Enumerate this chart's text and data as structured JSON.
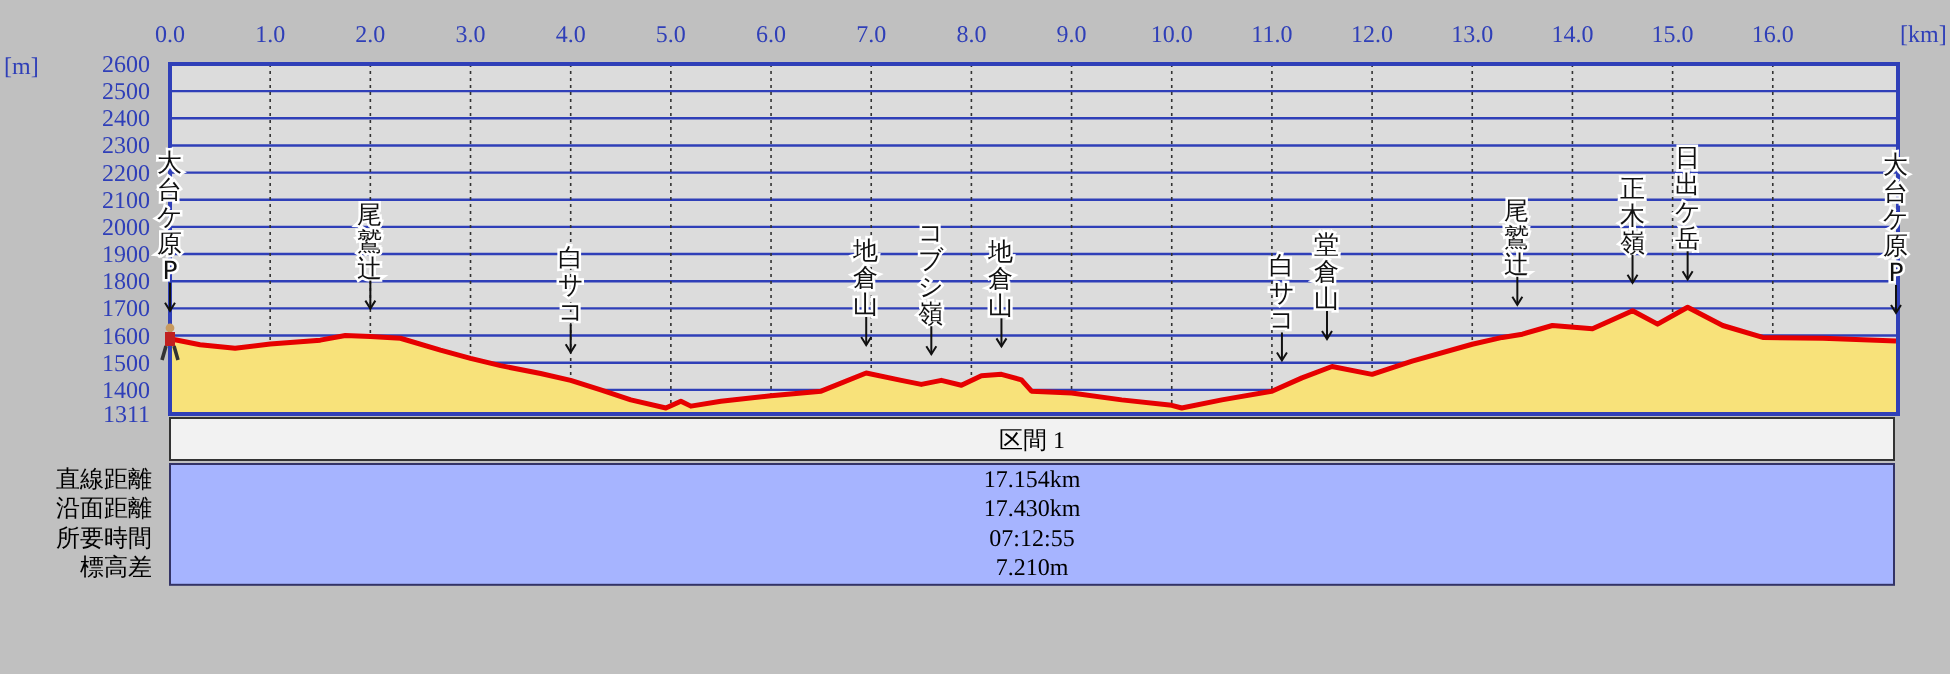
{
  "chart_data": {
    "type": "area",
    "xlabel": "[km]",
    "ylabel": "[m]",
    "x": [
      0,
      0.3,
      0.65,
      1.0,
      1.5,
      1.75,
      2.0,
      2.3,
      2.7,
      3.0,
      3.3,
      3.7,
      4.0,
      4.3,
      4.6,
      4.95,
      5.1,
      5.2,
      5.5,
      6.0,
      6.5,
      6.95,
      7.3,
      7.5,
      7.7,
      7.9,
      8.1,
      8.3,
      8.5,
      8.6,
      9.0,
      9.5,
      10.0,
      10.1,
      10.5,
      11.0,
      11.3,
      11.6,
      12.0,
      12.4,
      13.0,
      13.3,
      13.5,
      13.8,
      14.2,
      14.6,
      14.85,
      15.15,
      15.5,
      15.9,
      16.5,
      17.23
    ],
    "series": [
      {
        "color": "#f8e27a",
        "values": [
          1588,
          1566,
          1553,
          1569,
          1583,
          1600,
          1596,
          1590,
          1546,
          1516,
          1489,
          1460,
          1435,
          1400,
          1363,
          1333,
          1358,
          1340,
          1358,
          1378,
          1395,
          1462,
          1435,
          1420,
          1435,
          1417,
          1452,
          1457,
          1437,
          1395,
          1388,
          1363,
          1343,
          1333,
          1363,
          1395,
          1444,
          1486,
          1457,
          1506,
          1568,
          1593,
          1605,
          1637,
          1625,
          1691,
          1642,
          1704,
          1637,
          1593,
          1590,
          1580
        ]
      }
    ],
    "xlim": [
      0,
      17.25
    ],
    "ylim": [
      1311,
      2600
    ],
    "xticks": [
      {
        "value": 0,
        "label": "0.0"
      },
      {
        "value": 1,
        "label": "1.0"
      },
      {
        "value": 2,
        "label": "2.0"
      },
      {
        "value": 3,
        "label": "3.0"
      },
      {
        "value": 4,
        "label": "4.0"
      },
      {
        "value": 5,
        "label": "5.0"
      },
      {
        "value": 6,
        "label": "6.0"
      },
      {
        "value": 7,
        "label": "7.0"
      },
      {
        "value": 8,
        "label": "8.0"
      },
      {
        "value": 9,
        "label": "9.0"
      },
      {
        "value": 10,
        "label": "10.0"
      },
      {
        "value": 11,
        "label": "11.0"
      },
      {
        "value": 12,
        "label": "12.0"
      },
      {
        "value": 13,
        "label": "13.0"
      },
      {
        "value": 14,
        "label": "14.0"
      },
      {
        "value": 15,
        "label": "15.0"
      },
      {
        "value": 16,
        "label": "16.0"
      }
    ],
    "yticks": [
      1311,
      1400,
      1500,
      1600,
      1700,
      1800,
      1900,
      2000,
      2100,
      2200,
      2300,
      2400,
      2500,
      2600
    ],
    "grid": true,
    "annotations": [
      {
        "text": "大台ケ原P",
        "x": 0,
        "y": 1588
      },
      {
        "text": "尾鷲辻",
        "x": 2.0,
        "y": 1596
      },
      {
        "text": "白サコ",
        "x": 4.0,
        "y": 1435
      },
      {
        "text": "地倉山",
        "x": 6.95,
        "y": 1462
      },
      {
        "text": "コブシ嶺",
        "x": 7.6,
        "y": 1428
      },
      {
        "text": "地倉山",
        "x": 8.3,
        "y": 1457
      },
      {
        "text": "白サコ",
        "x": 11.1,
        "y": 1405
      },
      {
        "text": "堂倉山",
        "x": 11.55,
        "y": 1484
      },
      {
        "text": "尾鷲辻",
        "x": 13.45,
        "y": 1610
      },
      {
        "text": "正木嶺",
        "x": 14.6,
        "y": 1691
      },
      {
        "text": "日出ケ岳",
        "x": 15.15,
        "y": 1704
      },
      {
        "text": "大台ケ原P",
        "x": 17.23,
        "y": 1580
      },
      "区間 1",
      "直線距離",
      "17.154km",
      "沿面距離",
      "17.430km",
      "所要時間",
      "07:12:55",
      "標高差",
      "7.210m"
    ]
  }
}
